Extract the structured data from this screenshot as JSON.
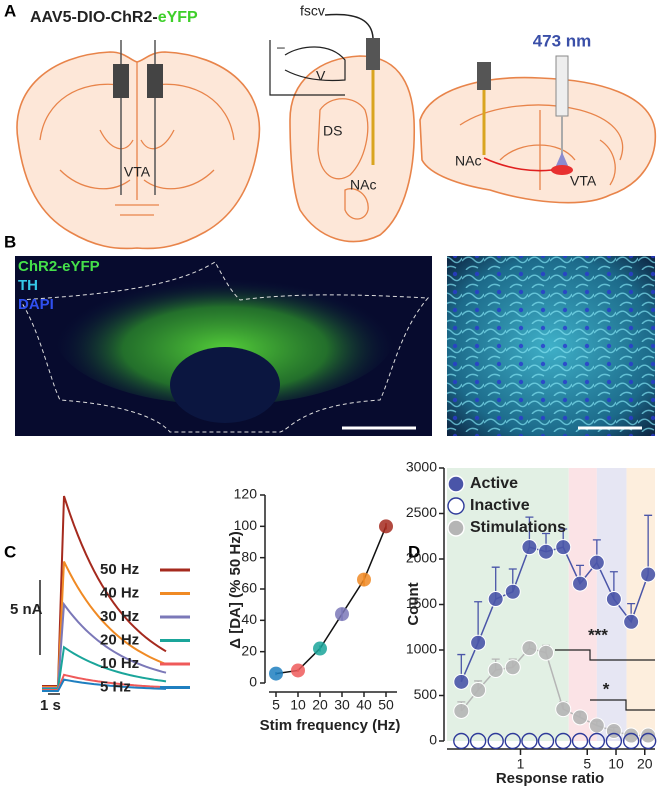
{
  "panel_labels": [
    "A",
    "B",
    "C",
    "D"
  ],
  "panel_a": {
    "virus_prefix": "AAV5-DIO-ChR2-",
    "virus_suffix": "eYFP",
    "coronal_label": "VTA",
    "fscv": "fscv",
    "cv_minus": "–",
    "cv_v": "V",
    "striatum_labels": [
      "DS",
      "NAc"
    ],
    "laser": "473 nm",
    "sagittal_labels": [
      "NAc",
      "VTA"
    ]
  },
  "panel_b": {
    "stains": [
      {
        "name": "ChR2-eYFP",
        "color": "#45e04a"
      },
      {
        "name": "TH",
        "color": "#35c8e8"
      },
      {
        "name": "DAPI",
        "color": "#3050f0"
      }
    ]
  },
  "panel_c_traces": {
    "scale": "5 nA",
    "time": "1 s",
    "items": [
      {
        "name": "50 Hz",
        "color": "#a52a1e"
      },
      {
        "name": "40 Hz",
        "color": "#f08a24"
      },
      {
        "name": "30 Hz",
        "color": "#7b78b8"
      },
      {
        "name": "20 Hz",
        "color": "#1aa59a"
      },
      {
        "name": "10 Hz",
        "color": "#ef5a5a"
      },
      {
        "name": "5 Hz",
        "color": "#1f7fc0"
      }
    ]
  },
  "chart_data": [
    {
      "type": "line",
      "xlabel": "Stim frequency (Hz)",
      "ylabel": "Δ [DA] (% 50 Hz)",
      "categories": [
        "5",
        "10",
        "20",
        "30",
        "40",
        "50"
      ],
      "values": [
        6,
        8,
        22,
        44,
        66,
        100
      ],
      "errors": [
        1,
        1,
        2,
        4,
        4,
        2
      ],
      "point_colors": [
        "#1f7fc0",
        "#ef5a5a",
        "#1aa59a",
        "#7b78b8",
        "#f08a24",
        "#a52a1e"
      ],
      "line_color": "#111111",
      "ylim": [
        0,
        120
      ],
      "yticks": [
        0,
        20,
        40,
        60,
        80,
        100,
        120
      ]
    },
    {
      "type": "line",
      "xscale": "log",
      "xlabel": "Response ratio",
      "ylabel": "Count",
      "x": [
        0.24,
        0.36,
        0.55,
        0.83,
        1.24,
        1.85,
        2.8,
        4.2,
        6.3,
        9.5,
        14.4,
        21.7
      ],
      "series": [
        {
          "name": "Active",
          "color": "#4a55a8",
          "filled": true,
          "connected": true,
          "values": [
            650,
            1080,
            1560,
            1640,
            2130,
            2080,
            2130,
            1730,
            1960,
            1560,
            1310,
            1830
          ],
          "errors": [
            300,
            450,
            350,
            250,
            330,
            200,
            200,
            200,
            250,
            300,
            200,
            650
          ]
        },
        {
          "name": "Inactive",
          "color": "#2e3a9a",
          "filled": false,
          "connected": false,
          "values": [
            0,
            0,
            0,
            0,
            0,
            0,
            0,
            0,
            0,
            0,
            0,
            0
          ]
        },
        {
          "name": "Stimulations",
          "color": "#b5b5b5",
          "filled": true,
          "connected": true,
          "values": [
            330,
            560,
            780,
            810,
            1020,
            970,
            350,
            260,
            170,
            110,
            60,
            60
          ],
          "errors": [
            100,
            100,
            120,
            90,
            60,
            80,
            80,
            60,
            50,
            40,
            30,
            30
          ]
        }
      ],
      "bands": [
        {
          "range": [
            0.17,
            3.2
          ],
          "color": "#e2f0e4"
        },
        {
          "range": [
            3.2,
            6.3
          ],
          "color": "#fbe3e6"
        },
        {
          "range": [
            6.3,
            12.9
          ],
          "color": "#e6e6f3"
        },
        {
          "range": [
            12.9,
            25.6
          ],
          "color": "#fdeedd"
        }
      ],
      "annotations": [
        "***",
        "*"
      ],
      "xlim": [
        0.17,
        25.6
      ],
      "xticks": [
        1,
        5,
        10,
        20
      ],
      "ylim": [
        0,
        3000
      ],
      "yticks": [
        0,
        500,
        1000,
        1500,
        2000,
        2500,
        3000
      ]
    }
  ]
}
